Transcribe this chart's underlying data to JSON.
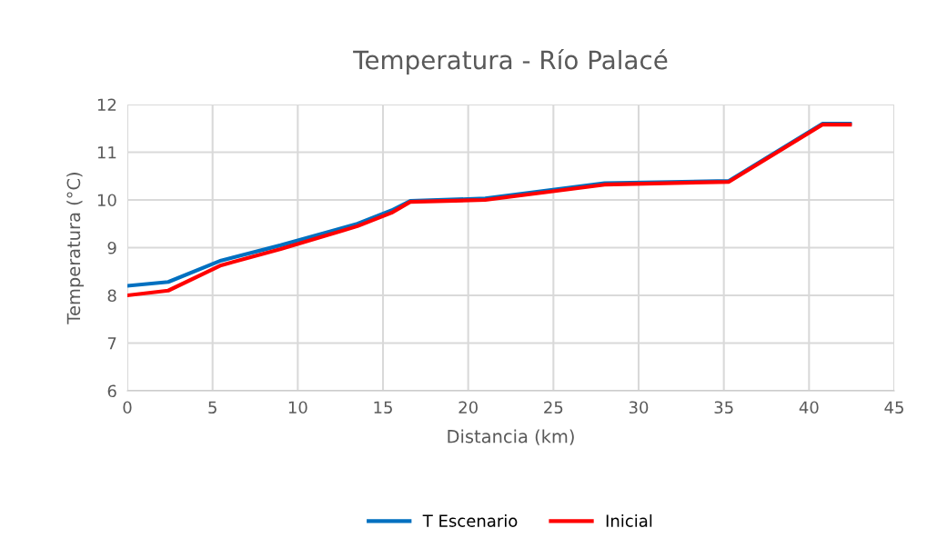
{
  "chart_data": {
    "type": "line",
    "title": "Temperatura - Río Palacé",
    "xlabel": "Distancia (km)",
    "ylabel": "Temperatura (°C)",
    "x": [
      0,
      2.4,
      5.5,
      9,
      13.5,
      15.5,
      16.6,
      21,
      28,
      35.3,
      40.8,
      42.4
    ],
    "series": [
      {
        "name": "T Escenario",
        "color": "#0070c0",
        "values": [
          8.2,
          8.28,
          8.73,
          9.05,
          9.5,
          9.78,
          9.98,
          10.03,
          10.35,
          10.4,
          11.6,
          11.6
        ]
      },
      {
        "name": "Inicial",
        "color": "#ff0000",
        "values": [
          8.0,
          8.1,
          8.63,
          8.97,
          9.45,
          9.73,
          9.96,
          10.0,
          10.32,
          10.38,
          11.58,
          11.58
        ]
      }
    ],
    "xlim": [
      0,
      45
    ],
    "xticks": [
      0,
      5,
      10,
      15,
      20,
      25,
      30,
      35,
      40,
      45
    ],
    "ylim": [
      6,
      12
    ],
    "yticks": [
      6,
      7,
      8,
      9,
      10,
      11,
      12
    ],
    "grid": true,
    "legend": "bottom",
    "marker": "none",
    "line_style": "solid"
  }
}
